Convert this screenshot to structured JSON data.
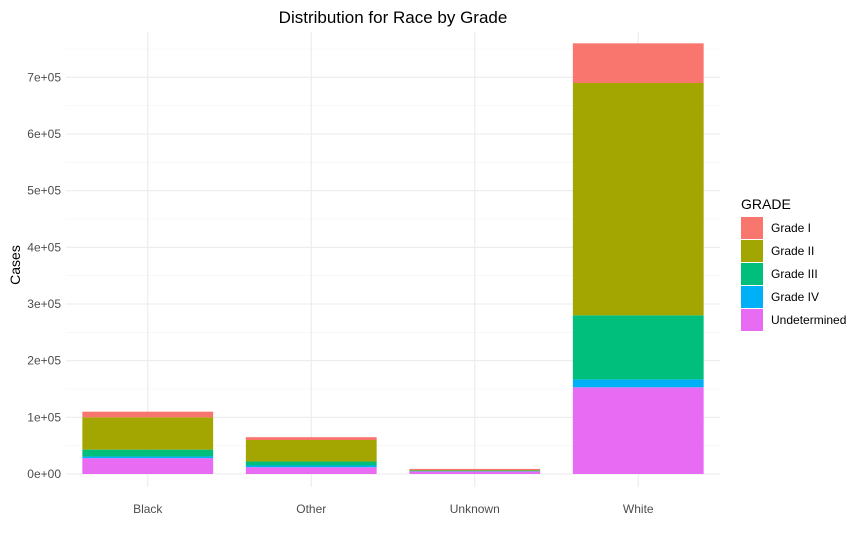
{
  "chart_data": {
    "type": "bar",
    "stacked": true,
    "title": "Distribution for Race by Grade",
    "xlabel": "",
    "ylabel": "Cases",
    "ylim": [
      0,
      780000
    ],
    "y_ticks": [
      0,
      100000,
      200000,
      300000,
      400000,
      500000,
      600000,
      700000
    ],
    "y_tick_labels": [
      "0e+00",
      "1e+05",
      "2e+05",
      "3e+05",
      "4e+05",
      "5e+05",
      "6e+05",
      "7e+05"
    ],
    "grid": true,
    "legend": {
      "title": "GRADE",
      "position": "right"
    },
    "categories": [
      "Black",
      "Other",
      "Unknown",
      "White"
    ],
    "series": [
      {
        "name": "Grade I",
        "color": "#F8766D",
        "values": [
          10000,
          5000,
          2000,
          70000
        ]
      },
      {
        "name": "Grade II",
        "color": "#A3A500",
        "values": [
          57000,
          38000,
          1000,
          410000
        ]
      },
      {
        "name": "Grade III",
        "color": "#00BF7D",
        "values": [
          12000,
          7000,
          1000,
          113000
        ]
      },
      {
        "name": "Grade IV",
        "color": "#00B0F6",
        "values": [
          3000,
          3000,
          500,
          14000
        ]
      },
      {
        "name": "Undetermined",
        "color": "#E76BF3",
        "values": [
          28000,
          12000,
          4500,
          153000
        ]
      }
    ],
    "stack_order_bottom_to_top": [
      "Undetermined",
      "Grade IV",
      "Grade III",
      "Grade II",
      "Grade I"
    ]
  }
}
